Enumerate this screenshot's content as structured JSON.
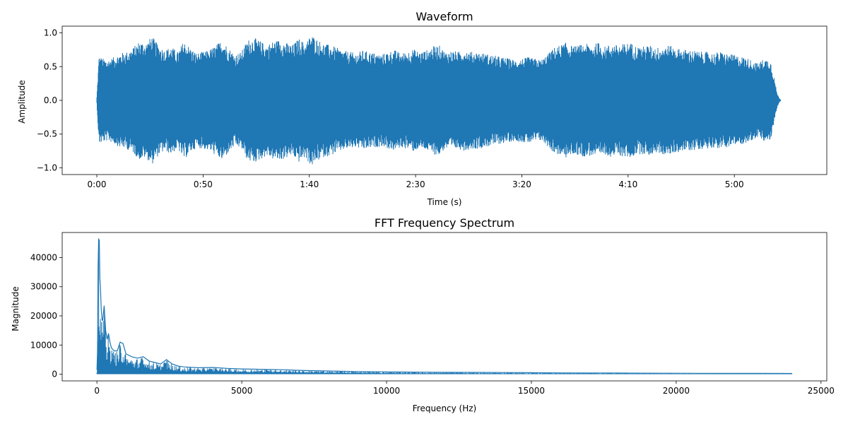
{
  "chart_data": [
    {
      "type": "line",
      "title": "Waveform",
      "xlabel": "Time (s)",
      "ylabel": "Amplitude",
      "x_unit": "seconds",
      "xlim": [
        -16.3,
        343.5
      ],
      "ylim": [
        -1.1,
        1.1
      ],
      "xticks": [
        0,
        50,
        100,
        150,
        200,
        250,
        300
      ],
      "xtick_labels": [
        "0:00",
        "0:50",
        "1:40",
        "2:30",
        "3:20",
        "4:10",
        "5:00"
      ],
      "yticks": [
        -1.0,
        -0.5,
        0.0,
        0.5,
        1.0
      ],
      "ytick_labels": [
        "−1.0",
        "−0.5",
        "0.0",
        "0.5",
        "1.0"
      ],
      "grid": false,
      "color": "#1f77b4",
      "envelope": {
        "t": [
          0,
          1,
          3,
          5,
          8,
          11,
          14,
          17,
          20,
          23,
          26,
          29,
          32,
          35,
          38,
          41,
          44,
          47,
          50,
          53,
          56,
          59,
          62,
          65,
          68,
          71,
          74,
          77,
          80,
          83,
          86,
          89,
          92,
          95,
          98,
          101,
          104,
          107,
          110,
          113,
          116,
          119,
          122,
          125,
          128,
          131,
          134,
          137,
          140,
          143,
          146,
          149,
          152,
          155,
          158,
          161,
          164,
          167,
          170,
          173,
          176,
          179,
          182,
          185,
          188,
          191,
          194,
          197,
          200,
          203,
          206,
          209,
          212,
          215,
          218,
          221,
          224,
          227,
          230,
          233,
          236,
          239,
          242,
          245,
          248,
          251,
          254,
          257,
          260,
          263,
          266,
          269,
          272,
          275,
          278,
          281,
          284,
          287,
          290,
          293,
          296,
          299,
          302,
          305,
          308,
          311,
          314,
          317,
          319,
          320,
          321,
          322
        ],
        "amplitude": [
          0.05,
          0.65,
          0.62,
          0.6,
          0.64,
          0.7,
          0.72,
          0.78,
          0.88,
          0.85,
          0.95,
          0.82,
          0.75,
          0.8,
          0.72,
          0.88,
          0.78,
          0.7,
          0.72,
          0.75,
          0.82,
          0.9,
          0.78,
          0.68,
          0.72,
          0.9,
          0.93,
          0.88,
          0.82,
          0.88,
          0.9,
          0.86,
          0.82,
          0.92,
          0.85,
          0.98,
          0.9,
          0.84,
          0.82,
          0.78,
          0.74,
          0.72,
          0.7,
          0.74,
          0.72,
          0.7,
          0.68,
          0.72,
          0.75,
          0.7,
          0.72,
          0.76,
          0.72,
          0.74,
          0.8,
          0.82,
          0.72,
          0.74,
          0.72,
          0.75,
          0.72,
          0.72,
          0.7,
          0.68,
          0.66,
          0.64,
          0.62,
          0.6,
          0.62,
          0.64,
          0.62,
          0.6,
          0.68,
          0.78,
          0.82,
          0.86,
          0.8,
          0.82,
          0.84,
          0.82,
          0.86,
          0.8,
          0.84,
          0.82,
          0.84,
          0.86,
          0.8,
          0.8,
          0.82,
          0.78,
          0.8,
          0.82,
          0.78,
          0.76,
          0.75,
          0.74,
          0.72,
          0.72,
          0.7,
          0.72,
          0.7,
          0.68,
          0.66,
          0.64,
          0.6,
          0.55,
          0.62,
          0.6,
          0.3,
          0.12,
          0.04,
          0.0
        ]
      }
    },
    {
      "type": "line",
      "title": "FFT Frequency Spectrum",
      "xlabel": "Frequency (Hz)",
      "ylabel": "Magnitude",
      "xlim": [
        -1200,
        25200
      ],
      "ylim": [
        -2300,
        48600
      ],
      "xticks": [
        0,
        5000,
        10000,
        15000,
        20000,
        25000
      ],
      "xtick_labels": [
        "0",
        "5000",
        "10000",
        "15000",
        "20000",
        "25000"
      ],
      "yticks": [
        0,
        10000,
        20000,
        30000,
        40000
      ],
      "ytick_labels": [
        "0",
        "10000",
        "20000",
        "30000",
        "40000"
      ],
      "grid": false,
      "color": "#1f77b4",
      "envelope": {
        "f": [
          0,
          20,
          40,
          60,
          80,
          100,
          120,
          150,
          180,
          200,
          250,
          300,
          350,
          400,
          450,
          500,
          600,
          700,
          800,
          900,
          1000,
          1200,
          1400,
          1600,
          1800,
          2000,
          2200,
          2400,
          2600,
          2800,
          3000,
          3500,
          4000,
          4500,
          5000,
          5500,
          6000,
          6500,
          7000,
          7500,
          8000,
          9000,
          10000,
          11000,
          12000,
          13000,
          14000,
          15000,
          16000,
          17000,
          18000,
          19000,
          20000,
          21000,
          22000,
          23000,
          24000
        ],
        "magnitude": [
          1500,
          8000,
          37000,
          46300,
          46000,
          33000,
          30000,
          22000,
          18500,
          18500,
          23500,
          15000,
          12000,
          14000,
          11000,
          9000,
          8000,
          8000,
          11000,
          10500,
          7000,
          6000,
          5500,
          6000,
          4500,
          4000,
          3500,
          5000,
          3500,
          2800,
          2500,
          2200,
          2300,
          2000,
          1800,
          1700,
          1600,
          1500,
          1300,
          1200,
          1100,
          900,
          800,
          700,
          650,
          600,
          550,
          500,
          450,
          400,
          380,
          350,
          320,
          300,
          280,
          260,
          250
        ]
      }
    }
  ]
}
